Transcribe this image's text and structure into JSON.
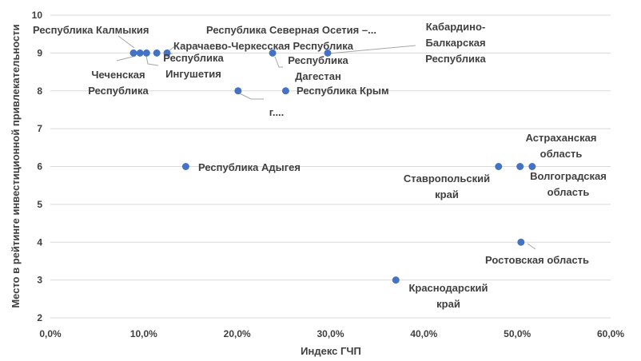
{
  "chart_data": {
    "type": "scatter",
    "xlabel": "Индекс ГЧП",
    "ylabel": "Место в рейтинге инвестиционной привлекательности",
    "xlim": [
      0,
      60
    ],
    "ylim": [
      2,
      10
    ],
    "x_ticks": [
      "0,0%",
      "10,0%",
      "20,0%",
      "30,0%",
      "40,0%",
      "50,0%",
      "60,0%"
    ],
    "y_ticks": [
      "2",
      "3",
      "4",
      "5",
      "6",
      "7",
      "8",
      "9",
      "10"
    ],
    "grid": "horizontal",
    "marker_color": "#4472c4",
    "points": [
      {
        "x": 8.9,
        "y": 9,
        "label": "Республика Калмыкия"
      },
      {
        "x": 9.6,
        "y": 9,
        "label": "Чеченская Республика"
      },
      {
        "x": 10.3,
        "y": 9,
        "label": "Республика Ингушетия"
      },
      {
        "x": 11.4,
        "y": 9,
        "label": ""
      },
      {
        "x": 12.5,
        "y": 9,
        "label": "Карачаево-Черкесская Республика"
      },
      {
        "x": 23.8,
        "y": 9,
        "label": "Республика Дагестан"
      },
      {
        "x": 29.7,
        "y": 9,
        "label": "Кабардино-Балкарская Республика"
      },
      {
        "x": 20.1,
        "y": 8,
        "label": "г. ..."
      },
      {
        "x": 25.2,
        "y": 8,
        "label": "Республика Крым"
      },
      {
        "x": 14.5,
        "y": 6,
        "label": "Республика Адыгея"
      },
      {
        "x": 48.0,
        "y": 6,
        "label": "Ставропольский край"
      },
      {
        "x": 50.3,
        "y": 6,
        "label": "Астраханская область"
      },
      {
        "x": 51.6,
        "y": 6,
        "label": "Волгоградская область"
      },
      {
        "x": 50.4,
        "y": 4,
        "label": "Ростовская область"
      },
      {
        "x": 37.0,
        "y": 3,
        "label": "Краснодарский край"
      }
    ],
    "labels": [
      {
        "name": "label-kalmykia",
        "lines": [
          "Республика Калмыкия"
        ]
      },
      {
        "name": "label-chechnya",
        "lines": [
          "Чеченская",
          "Республика"
        ]
      },
      {
        "name": "label-ingushetia",
        "lines": [
          "Республика",
          "Ингушетия"
        ]
      },
      {
        "name": "label-karachay",
        "lines": [
          "Карачаево-Черкесская Республика"
        ]
      },
      {
        "name": "label-north-ossetia",
        "lines": [
          "Республика Северная Осетия –..."
        ]
      },
      {
        "name": "label-dagestan",
        "lines": [
          "Республика",
          "Дагестан"
        ]
      },
      {
        "name": "label-kabardino",
        "lines": [
          "Кабардино-",
          "Балкарская",
          "Республика"
        ]
      },
      {
        "name": "label-g",
        "lines": [
          "г...."
        ]
      },
      {
        "name": "label-crimea",
        "lines": [
          "Республика Крым"
        ]
      },
      {
        "name": "label-adygea",
        "lines": [
          "Республика Адыгея"
        ]
      },
      {
        "name": "label-stavropol",
        "lines": [
          "Ставропольский",
          "край"
        ]
      },
      {
        "name": "label-astrakhan",
        "lines": [
          "Астраханская",
          "область"
        ]
      },
      {
        "name": "label-volgograd",
        "lines": [
          "Волгоградская",
          "область"
        ]
      },
      {
        "name": "label-rostov",
        "lines": [
          "Ростовская область"
        ]
      },
      {
        "name": "label-krasnodar",
        "lines": [
          "Краснодарский",
          "край"
        ]
      }
    ]
  }
}
